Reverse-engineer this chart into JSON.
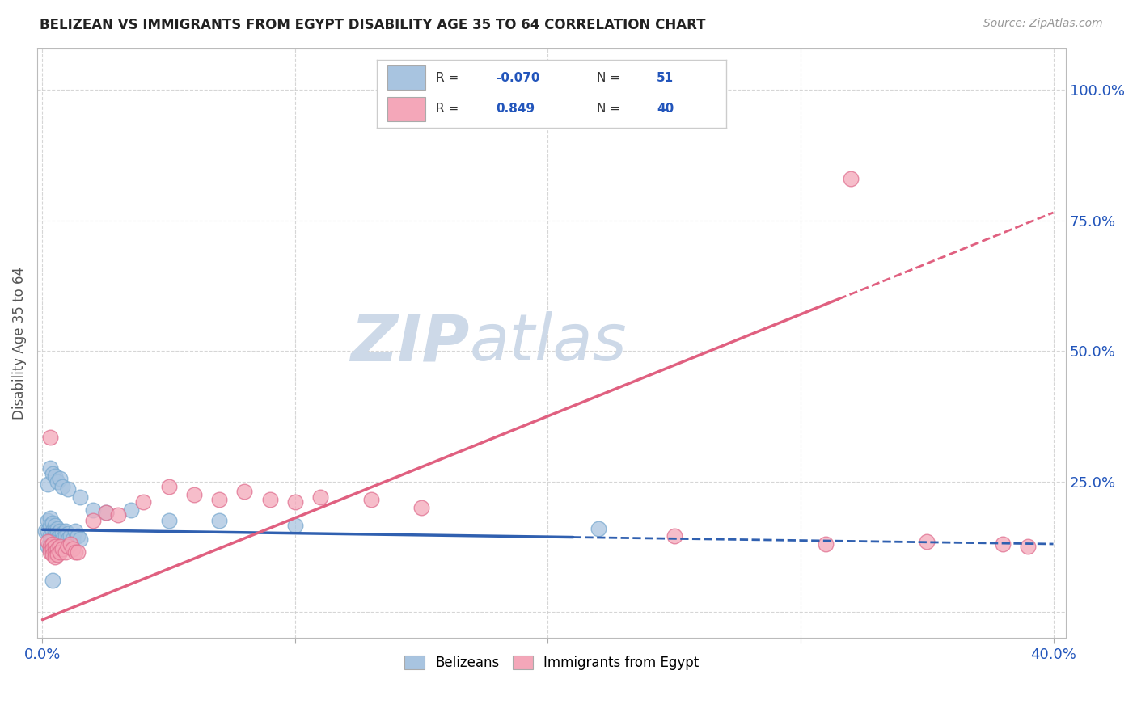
{
  "title": "BELIZEAN VS IMMIGRANTS FROM EGYPT DISABILITY AGE 35 TO 64 CORRELATION CHART",
  "source": "Source: ZipAtlas.com",
  "ylabel_label": "Disability Age 35 to 64",
  "x_min": -0.002,
  "x_max": 0.405,
  "y_min": -0.05,
  "y_max": 1.08,
  "x_ticks": [
    0.0,
    0.1,
    0.2,
    0.3,
    0.4
  ],
  "x_tick_labels": [
    "0.0%",
    "",
    "",
    "",
    "40.0%"
  ],
  "y_ticks": [
    0.0,
    0.25,
    0.5,
    0.75,
    1.0
  ],
  "y_tick_labels": [
    "",
    "25.0%",
    "50.0%",
    "75.0%",
    "100.0%"
  ],
  "belizean_color": "#a8c4e0",
  "belizean_edge": "#7aaad0",
  "egypt_color": "#f4a7b9",
  "egypt_edge": "#e07090",
  "belizean_R": -0.07,
  "belizean_N": 51,
  "egypt_R": 0.849,
  "egypt_N": 40,
  "blue_line_color": "#3060b0",
  "pink_line_color": "#e06080",
  "watermark_zip_color": "#c5d8ec",
  "watermark_atlas_color": "#c5d8ec",
  "grid_color": "#cccccc",
  "title_color": "#222222",
  "axis_label_color": "#2255bb",
  "legend_label1": "Belizeans",
  "legend_label2": "Immigrants from Egypt",
  "blue_line_solid_end": 0.21,
  "pink_line_solid_end": 0.315,
  "belizean_points": [
    [
      0.001,
      0.155
    ],
    [
      0.002,
      0.175
    ],
    [
      0.002,
      0.155
    ],
    [
      0.003,
      0.18
    ],
    [
      0.003,
      0.165
    ],
    [
      0.003,
      0.145
    ],
    [
      0.004,
      0.17
    ],
    [
      0.004,
      0.155
    ],
    [
      0.004,
      0.14
    ],
    [
      0.005,
      0.165
    ],
    [
      0.005,
      0.155
    ],
    [
      0.005,
      0.145
    ],
    [
      0.005,
      0.135
    ],
    [
      0.006,
      0.16
    ],
    [
      0.006,
      0.15
    ],
    [
      0.006,
      0.14
    ],
    [
      0.006,
      0.13
    ],
    [
      0.007,
      0.155
    ],
    [
      0.007,
      0.145
    ],
    [
      0.007,
      0.135
    ],
    [
      0.008,
      0.15
    ],
    [
      0.008,
      0.14
    ],
    [
      0.009,
      0.155
    ],
    [
      0.009,
      0.145
    ],
    [
      0.01,
      0.15
    ],
    [
      0.01,
      0.14
    ],
    [
      0.011,
      0.145
    ],
    [
      0.012,
      0.14
    ],
    [
      0.013,
      0.155
    ],
    [
      0.014,
      0.145
    ],
    [
      0.015,
      0.14
    ],
    [
      0.002,
      0.245
    ],
    [
      0.003,
      0.275
    ],
    [
      0.004,
      0.265
    ],
    [
      0.005,
      0.26
    ],
    [
      0.006,
      0.25
    ],
    [
      0.007,
      0.255
    ],
    [
      0.008,
      0.24
    ],
    [
      0.01,
      0.235
    ],
    [
      0.015,
      0.22
    ],
    [
      0.02,
      0.195
    ],
    [
      0.025,
      0.19
    ],
    [
      0.035,
      0.195
    ],
    [
      0.05,
      0.175
    ],
    [
      0.07,
      0.175
    ],
    [
      0.1,
      0.165
    ],
    [
      0.003,
      0.135
    ],
    [
      0.004,
      0.06
    ],
    [
      0.22,
      0.16
    ],
    [
      0.002,
      0.125
    ],
    [
      0.003,
      0.12
    ]
  ],
  "egypt_points": [
    [
      0.002,
      0.135
    ],
    [
      0.003,
      0.125
    ],
    [
      0.003,
      0.115
    ],
    [
      0.004,
      0.13
    ],
    [
      0.004,
      0.12
    ],
    [
      0.004,
      0.11
    ],
    [
      0.005,
      0.125
    ],
    [
      0.005,
      0.115
    ],
    [
      0.005,
      0.105
    ],
    [
      0.006,
      0.12
    ],
    [
      0.006,
      0.11
    ],
    [
      0.007,
      0.125
    ],
    [
      0.007,
      0.115
    ],
    [
      0.008,
      0.12
    ],
    [
      0.009,
      0.115
    ],
    [
      0.01,
      0.125
    ],
    [
      0.011,
      0.13
    ],
    [
      0.012,
      0.12
    ],
    [
      0.013,
      0.115
    ],
    [
      0.014,
      0.115
    ],
    [
      0.02,
      0.175
    ],
    [
      0.025,
      0.19
    ],
    [
      0.03,
      0.185
    ],
    [
      0.04,
      0.21
    ],
    [
      0.05,
      0.24
    ],
    [
      0.06,
      0.225
    ],
    [
      0.07,
      0.215
    ],
    [
      0.08,
      0.23
    ],
    [
      0.09,
      0.215
    ],
    [
      0.1,
      0.21
    ],
    [
      0.11,
      0.22
    ],
    [
      0.13,
      0.215
    ],
    [
      0.15,
      0.2
    ],
    [
      0.003,
      0.335
    ],
    [
      0.25,
      0.145
    ],
    [
      0.31,
      0.13
    ],
    [
      0.35,
      0.135
    ],
    [
      0.38,
      0.13
    ],
    [
      0.39,
      0.125
    ],
    [
      0.32,
      0.83
    ]
  ]
}
